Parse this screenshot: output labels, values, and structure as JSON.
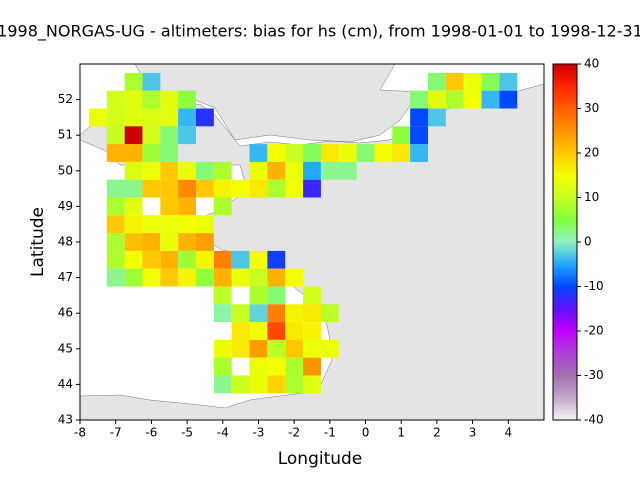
{
  "chart_data": {
    "type": "heatmap",
    "title": "1998_NORGAS-UG - altimeters: bias for hs (cm), from 1998-01-01 to 1998-12-31",
    "x_label": "Longitude",
    "y_label": "Latitude",
    "xlim": [
      -8,
      5
    ],
    "ylim": [
      43,
      53
    ],
    "xticks": [
      -8,
      -7,
      -6,
      -5,
      -4,
      -3,
      -2,
      -1,
      0,
      1,
      2,
      3,
      4
    ],
    "yticks": [
      43,
      44,
      45,
      46,
      47,
      48,
      49,
      50,
      51,
      52
    ],
    "zlim": [
      -40,
      40
    ],
    "zticks": [
      -40,
      -30,
      -20,
      -10,
      0,
      10,
      20,
      30,
      40
    ],
    "colormap": [
      "#f4f4f4",
      "#c4a8cc",
      "#a070b0",
      "#b040d8",
      "#c000ff",
      "#6010ff",
      "#0048ff",
      "#20a8ff",
      "#90f0c0",
      "#80ff40",
      "#c8ff20",
      "#f4ff00",
      "#ffc800",
      "#ff9400",
      "#ff6000",
      "#ff2400",
      "#cc0000"
    ],
    "land_color": "#e4e4e4",
    "x": [
      -6.5,
      -6,
      2,
      2.5,
      3,
      3.5,
      4,
      -7,
      -6.5,
      -6,
      -5.5,
      -5,
      1.5,
      2,
      2.5,
      3,
      3.5,
      4,
      -7.5,
      -7,
      -6.5,
      -6,
      -5.5,
      -5,
      -4.5,
      1.5,
      2,
      -7,
      -6.5,
      -6,
      -5.5,
      -5,
      1,
      1.5,
      -7,
      -6.5,
      -6,
      -5.5,
      -3,
      -2.5,
      -2,
      -1.5,
      -1,
      -0.5,
      0,
      0.5,
      1,
      1.5,
      -6.5,
      -6,
      -5.5,
      -5,
      -4.5,
      -4,
      -3,
      -2.5,
      -2,
      -1.5,
      -1,
      -0.5,
      -7,
      -6.5,
      -6,
      -5.5,
      -5,
      -4.5,
      -4,
      -3.5,
      -3,
      -2.5,
      -2,
      -1.5,
      -7,
      -6.5,
      -5.5,
      -5,
      -4,
      -7,
      -6.5,
      -6,
      -5.5,
      -5,
      -4.5,
      -7,
      -6.5,
      -6,
      -5.5,
      -5,
      -4.5,
      -7,
      -6.5,
      -6,
      -5.5,
      -5,
      -4.5,
      -4,
      -3.5,
      -3,
      -2.5,
      -7,
      -6.5,
      -6,
      -5.5,
      -5,
      -4.5,
      -4,
      -3.5,
      -3,
      -2.5,
      -2,
      -4,
      -3,
      -2.5,
      -1.5,
      -4,
      -3.5,
      -3,
      -2.5,
      -2,
      -1.5,
      -1,
      -3.5,
      -3,
      -2.5,
      -2,
      -1.5,
      -4,
      -3.5,
      -3,
      -2.5,
      -2,
      -1.5,
      -1,
      -4,
      -3,
      -2.5,
      -2,
      -1.5,
      -4,
      -3.5,
      -3,
      -2.5,
      -2,
      -1.5
    ],
    "y": [
      52.5,
      52.5,
      52.5,
      52.5,
      52.5,
      52.5,
      52.5,
      52,
      52,
      52,
      52,
      52,
      52,
      52,
      52,
      52,
      52,
      52,
      51.5,
      51.5,
      51.5,
      51.5,
      51.5,
      51.5,
      51.5,
      51.5,
      51.5,
      51,
      51,
      51,
      51,
      51,
      51,
      51,
      50.5,
      50.5,
      50.5,
      50.5,
      50.5,
      50.5,
      50.5,
      50.5,
      50.5,
      50.5,
      50.5,
      50.5,
      50.5,
      50.5,
      50,
      50,
      50,
      50,
      50,
      50,
      50,
      50,
      50,
      50,
      50,
      50,
      49.5,
      49.5,
      49.5,
      49.5,
      49.5,
      49.5,
      49.5,
      49.5,
      49.5,
      49.5,
      49.5,
      49.5,
      49,
      49,
      49,
      49,
      49,
      48.5,
      48.5,
      48.5,
      48.5,
      48.5,
      48.5,
      48,
      48,
      48,
      48,
      48,
      48,
      47.5,
      47.5,
      47.5,
      47.5,
      47.5,
      47.5,
      47.5,
      47.5,
      47.5,
      47.5,
      47,
      47,
      47,
      47,
      47,
      47,
      47,
      47,
      47,
      47,
      47,
      46.5,
      46.5,
      46.5,
      46.5,
      46,
      46,
      46,
      46,
      46,
      46,
      46,
      45.5,
      45.5,
      45.5,
      45.5,
      45.5,
      45,
      45,
      45,
      45,
      45,
      45,
      45,
      44.5,
      44.5,
      44.5,
      44.5,
      44.5,
      44,
      44,
      44,
      44,
      44,
      44
    ],
    "values": [
      8,
      -3,
      3,
      20,
      14,
      4,
      -3,
      11,
      13,
      8,
      13,
      6,
      3,
      13,
      8,
      15,
      -4,
      -10,
      14,
      11,
      13,
      12,
      13,
      -4,
      -12,
      -10,
      -3,
      10,
      40,
      11,
      3,
      -3,
      6,
      -10,
      22,
      22,
      7,
      3,
      -4,
      15,
      10,
      4,
      17,
      14,
      3,
      15,
      17,
      -4,
      12,
      14,
      20,
      14,
      3,
      8,
      14,
      22,
      14,
      -5,
      2,
      2,
      2,
      2,
      20,
      20,
      26,
      20,
      16,
      15,
      17,
      8,
      15,
      -13,
      8,
      13,
      20,
      22,
      8,
      20,
      16,
      14,
      14,
      15,
      14,
      8,
      21,
      22,
      14,
      22,
      24,
      8,
      15,
      20,
      22,
      7,
      16,
      27,
      -3,
      15,
      -11,
      2,
      7,
      15,
      20,
      16,
      6,
      22,
      14,
      10,
      22,
      15,
      9,
      8,
      3,
      11,
      1,
      10,
      -2,
      27,
      16,
      17,
      9,
      17,
      15,
      32,
      17,
      16,
      14,
      17,
      24,
      9,
      20,
      14,
      14,
      8,
      14,
      15,
      8,
      25,
      2,
      10,
      14,
      19,
      8,
      13
    ]
  }
}
